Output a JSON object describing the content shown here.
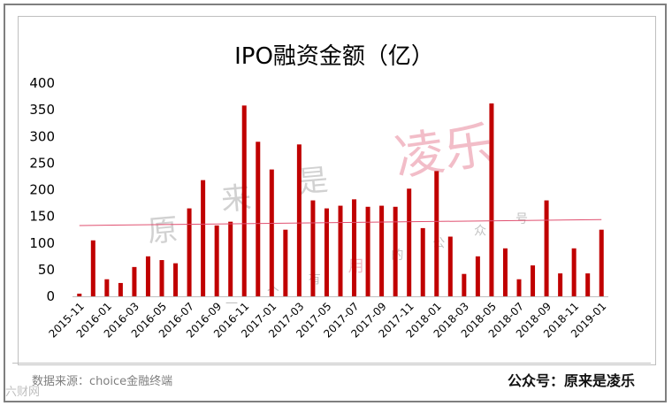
{
  "chart_data": {
    "type": "bar",
    "title": "IPO融资金额（亿）",
    "xlabel": "",
    "ylabel": "",
    "ylim": [
      0,
      400
    ],
    "yticks": [
      0,
      50,
      100,
      150,
      200,
      250,
      300,
      350,
      400
    ],
    "grid": false,
    "legend": "none",
    "trendline": "linear",
    "tick_labels": [
      "2015-11",
      "2016-01",
      "2016-03",
      "2016-05",
      "2016-07",
      "2016-09",
      "2016-11",
      "2017-01",
      "2017-03",
      "2017-05",
      "2017-07",
      "2017-09",
      "2017-11",
      "2018-01",
      "2018-03",
      "2018-05",
      "2018-07",
      "2018-09",
      "2018-11",
      "2019-01"
    ],
    "categories": [
      "2015-11",
      "2015-12",
      "2016-01",
      "2016-02",
      "2016-03",
      "2016-04",
      "2016-05",
      "2016-06",
      "2016-07",
      "2016-08",
      "2016-09",
      "2016-10",
      "2016-11",
      "2016-12",
      "2017-01",
      "2017-02",
      "2017-03",
      "2017-04",
      "2017-05",
      "2017-06",
      "2017-07",
      "2017-08",
      "2017-09",
      "2017-10",
      "2017-11",
      "2017-12",
      "2018-01",
      "2018-02",
      "2018-03",
      "2018-04",
      "2018-05",
      "2018-06",
      "2018-07",
      "2018-08",
      "2018-09",
      "2018-10",
      "2018-11",
      "2018-12",
      "2019-01"
    ],
    "values": [
      5,
      105,
      32,
      25,
      55,
      75,
      68,
      62,
      165,
      218,
      133,
      140,
      358,
      290,
      238,
      125,
      285,
      180,
      165,
      170,
      182,
      168,
      170,
      168,
      202,
      128,
      235,
      112,
      42,
      75,
      362,
      90,
      32,
      58,
      180,
      43,
      90,
      43,
      125
    ],
    "colors": {
      "bar": "#c00000",
      "trend": "#e05070"
    }
  },
  "footer": {
    "source": "数据来源：choice金融终端",
    "account": "公众号：原来是凌乐",
    "bottom_mark": "六财网"
  },
  "watermark": {
    "large": "凌乐",
    "medium_1": "原",
    "medium_2": "来",
    "medium_3": "是",
    "small": "一个有用的公众号"
  }
}
